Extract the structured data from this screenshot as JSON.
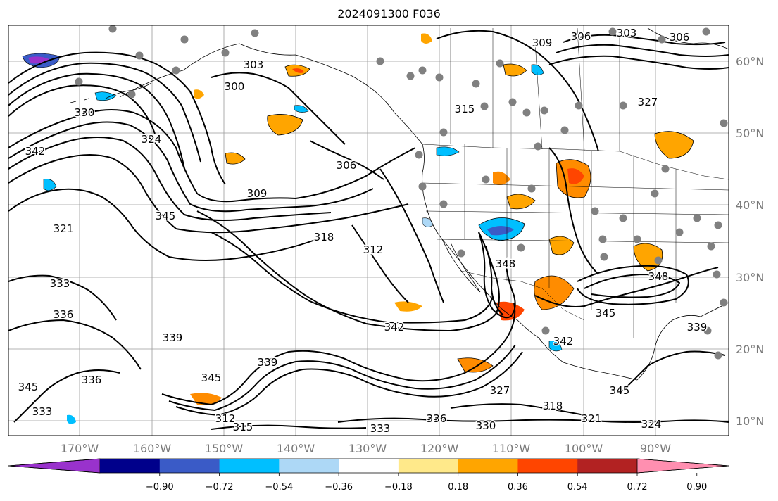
{
  "title": "2024091300 F036",
  "lat_ticks": [
    "60°N",
    "50°N",
    "40°N",
    "30°N",
    "20°N",
    "10°N"
  ],
  "lon_ticks": [
    "170°W",
    "160°W",
    "150°W",
    "140°W",
    "130°W",
    "120°W",
    "110°W",
    "100°W",
    "90°W"
  ],
  "colorbar": {
    "ticks": [
      "−0.90",
      "−0.72",
      "−0.54",
      "−0.36",
      "−0.18",
      "0.18",
      "0.36",
      "0.54",
      "0.72",
      "0.90"
    ],
    "colors": [
      "#9932cc",
      "#00008b",
      "#3a5bc7",
      "#00bfff",
      "#add8f6",
      "#ffffff",
      "#ffe98a",
      "#ffa500",
      "#ff4500",
      "#b22222",
      "#ff8fb0"
    ]
  },
  "contour_labels": [
    "303",
    "300",
    "306",
    "309",
    "306",
    "303",
    "306",
    "309",
    "312",
    "315",
    "318",
    "321",
    "324",
    "327",
    "330",
    "333",
    "336",
    "339",
    "342",
    "345",
    "348",
    "312",
    "315",
    "318",
    "321",
    "324",
    "327",
    "330",
    "333",
    "336",
    "339",
    "342",
    "345",
    "348",
    "345",
    "345",
    "345",
    "342",
    "339",
    "336",
    "333"
  ]
}
